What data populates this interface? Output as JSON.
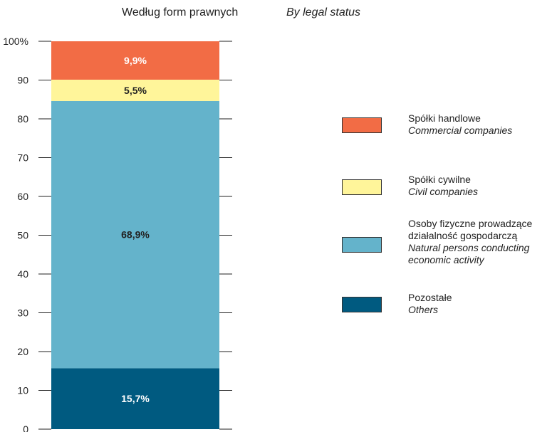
{
  "title": {
    "pl": "Według form prawnych",
    "en": "By legal status"
  },
  "colors": {
    "commercial": "#f26c45",
    "civil": "#fff59a",
    "natural": "#64b3cb",
    "others": "#005a80",
    "axis": "#222222"
  },
  "chart_data": {
    "type": "bar",
    "stacked": true,
    "categories": [
      ""
    ],
    "series": [
      {
        "name": "Pozostałe / Others",
        "values": [
          15.7
        ],
        "label": "15,7%",
        "color": "#005a80"
      },
      {
        "name": "Osoby fizyczne prowadzące działalność gospodarczą / Natural persons conducting economic activity",
        "values": [
          68.9
        ],
        "label": "68,9%",
        "color": "#64b3cb"
      },
      {
        "name": "Spółki cywilne / Civil companies",
        "values": [
          5.5
        ],
        "label": "5,5%",
        "color": "#fff59a"
      },
      {
        "name": "Spółki handlowe / Commercial companies",
        "values": [
          9.9
        ],
        "label": "9,9%",
        "color": "#f26c45"
      }
    ],
    "ylim": [
      0,
      100
    ],
    "yticks": [
      "0",
      "10",
      "20",
      "30",
      "40",
      "50",
      "60",
      "70",
      "80",
      "90",
      "100%"
    ],
    "grid": false,
    "legend_position": "right"
  },
  "legend": [
    {
      "pl": "Spółki handlowe",
      "en": "Commercial companies",
      "color": "#f26c45"
    },
    {
      "pl": "Spółki cywilne",
      "en": "Civil companies",
      "color": "#fff59a"
    },
    {
      "pl": "Osoby fizyczne prowadzące działalność gospodarczą",
      "en": "Natural persons conducting economic activity",
      "color": "#64b3cb"
    },
    {
      "pl": "Pozostałe",
      "en": "Others",
      "color": "#005a80"
    }
  ]
}
